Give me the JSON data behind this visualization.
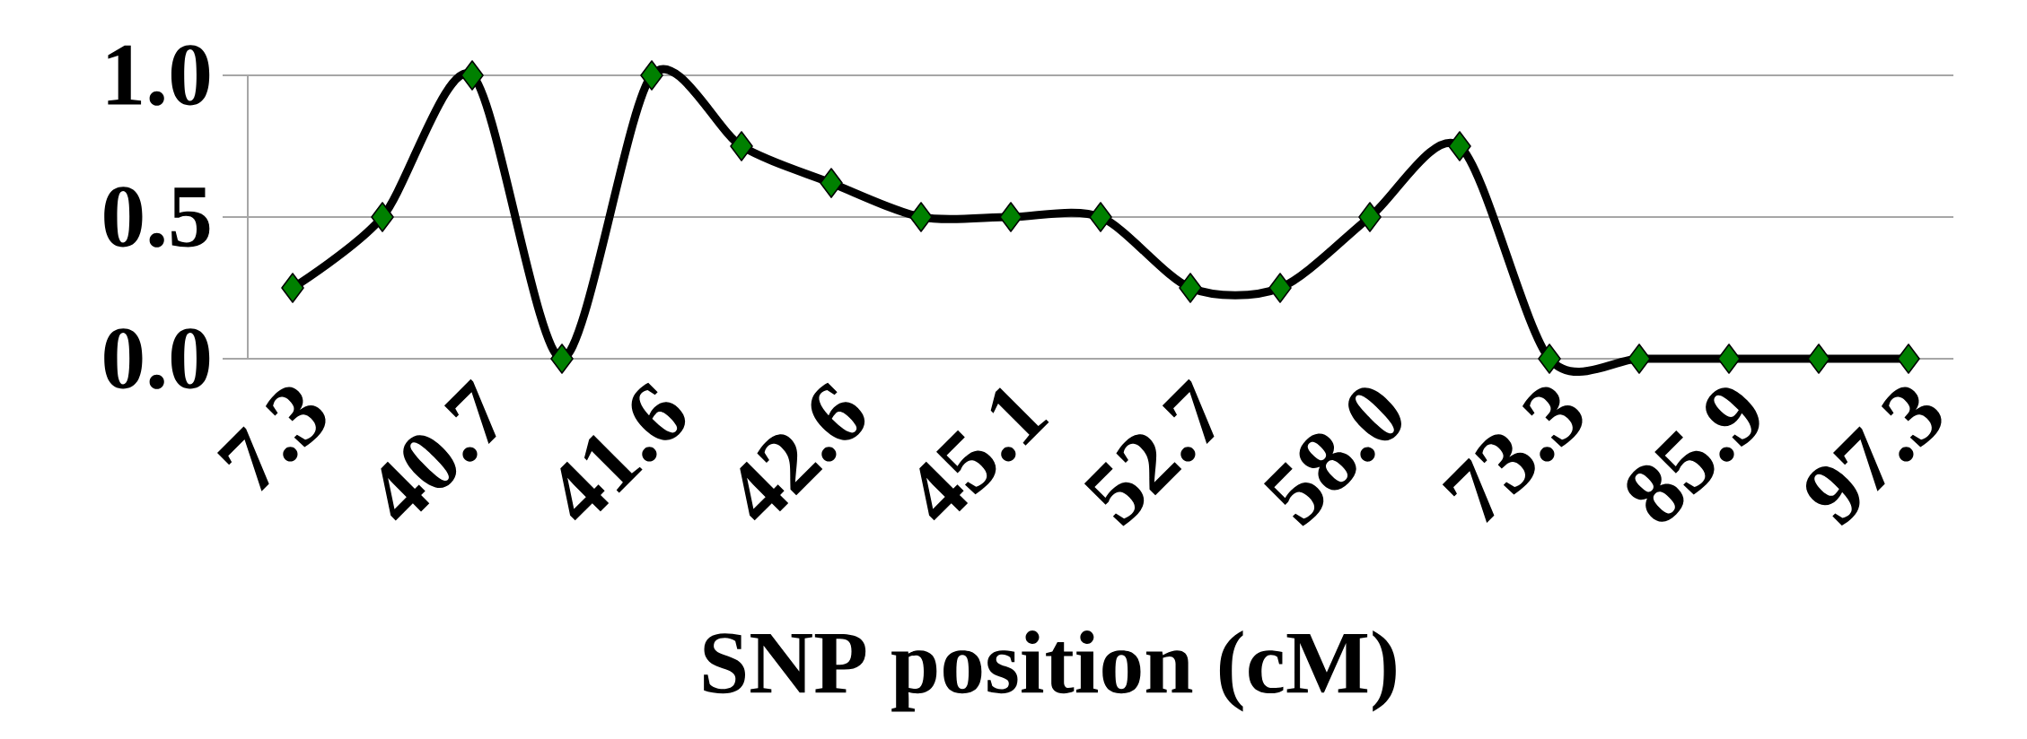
{
  "chart_data": {
    "type": "line",
    "xlabel": "SNP position (cM)",
    "categories": [
      "7.3",
      null,
      "40.7",
      null,
      "41.6",
      null,
      "42.6",
      null,
      "45.1",
      null,
      "52.7",
      null,
      "58.0",
      null,
      "73.3",
      null,
      "85.9",
      null,
      "97.3"
    ],
    "values": [
      0.25,
      0.5,
      1,
      0,
      1,
      0.75,
      0.62,
      0.5,
      0.5,
      0.5,
      0.25,
      0.25,
      0.5,
      0.75,
      0,
      0,
      0,
      0,
      0
    ],
    "color": "#000000",
    "marker": "diamond",
    "line_style": "solid",
    "ylim": [
      0,
      1
    ],
    "yticks": [
      {
        "value": 0,
        "label": "0.0"
      },
      {
        "value": 0.5,
        "label": "0.5"
      },
      {
        "value": 1,
        "label": "1.0"
      }
    ],
    "grid": "y"
  }
}
